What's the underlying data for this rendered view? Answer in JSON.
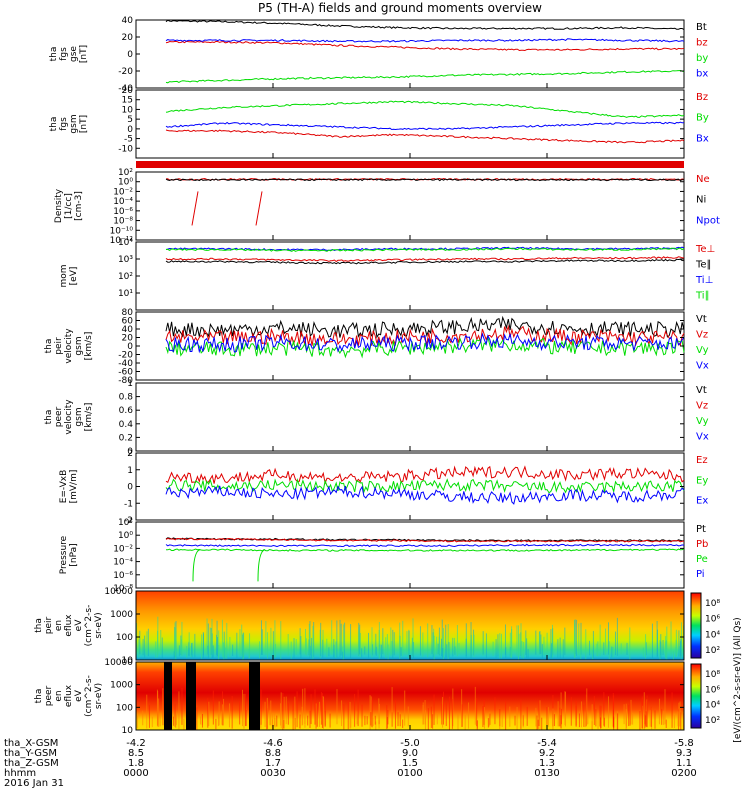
{
  "title": "P5 (TH-A) fields and ground moments overview",
  "colors": {
    "black": "#000000",
    "red": "#e00000",
    "green": "#00dd00",
    "blue": "#0000ff"
  },
  "chart_data": [
    {
      "type": "line",
      "name": "fgs-gse",
      "ylabel": [
        "tha",
        "fgs",
        "gse",
        "[nT]"
      ],
      "ylim": [
        -40,
        40
      ],
      "yticks": [
        -40,
        -20,
        0,
        20,
        40
      ],
      "series": [
        {
          "name": "Bt",
          "color": "#000000",
          "values": [
            39,
            38,
            36,
            33,
            31,
            30,
            30,
            30,
            31,
            29
          ]
        },
        {
          "name": "bz",
          "color": "#e00000",
          "values": [
            14,
            14,
            13,
            10,
            8,
            6,
            5,
            5,
            6,
            6
          ]
        },
        {
          "name": "by",
          "color": "#00dd00",
          "values": [
            -33,
            -31,
            -29,
            -28,
            -27,
            -25,
            -24,
            -23,
            -21,
            -20
          ]
        },
        {
          "name": "bx",
          "color": "#0000ff",
          "values": [
            16,
            16,
            16,
            15,
            15,
            16,
            16,
            17,
            16,
            15
          ]
        }
      ]
    },
    {
      "type": "line",
      "name": "fgs-gsm",
      "ylabel": [
        "tha",
        "fgs",
        "gsm",
        "[nT]"
      ],
      "ylim": [
        -15,
        20
      ],
      "yticks": [
        -10,
        -5,
        0,
        5,
        10,
        15,
        20
      ],
      "series": [
        {
          "name": "Bz",
          "color": "#e00000",
          "values": [
            -1,
            -1,
            -2,
            -4,
            -3,
            -4,
            -5,
            -6,
            -7,
            -6
          ]
        },
        {
          "name": "By",
          "color": "#00dd00",
          "values": [
            9,
            11,
            12,
            13,
            14,
            13,
            12,
            9,
            6,
            7
          ]
        },
        {
          "name": "Bx",
          "color": "#0000ff",
          "values": [
            1,
            3,
            2,
            1,
            0,
            0,
            1,
            2,
            3,
            3
          ]
        }
      ]
    },
    {
      "type": "line",
      "name": "density",
      "ylabel": [
        "Density",
        "[1/cc]",
        "[cm-3]"
      ],
      "ylim": [
        -12,
        2
      ],
      "log": true,
      "yticks": [
        -12,
        -10,
        -8,
        -6,
        -4,
        -2,
        0,
        2
      ],
      "series": [
        {
          "name": "Ne",
          "color": "#e00000",
          "values": [
            0.5,
            0.5,
            0.5,
            0.5,
            0.5,
            0.5,
            0.5,
            0.5,
            0.5,
            0.5
          ]
        },
        {
          "name": "Ni",
          "color": "#000000",
          "values": [
            0.4,
            0.4,
            0.4,
            0.4,
            0.4,
            0.4,
            0.4,
            0.4,
            0.4,
            0.4
          ]
        },
        {
          "name": "Npot",
          "color": "#0000ff",
          "values": []
        }
      ]
    },
    {
      "type": "line",
      "name": "temperature",
      "ylabel": [
        "mom",
        "[eV]"
      ],
      "ylim": [
        0,
        4
      ],
      "log": true,
      "yticks": [
        1,
        2,
        3,
        4
      ],
      "series": [
        {
          "name": "Te⊥",
          "color": "#e00000",
          "values": [
            3.0,
            3.0,
            2.95,
            2.9,
            2.95,
            3.0,
            3.0,
            3.05,
            3.05,
            3.1
          ]
        },
        {
          "name": "Te∥",
          "color": "#000000",
          "values": [
            2.85,
            2.85,
            2.8,
            2.75,
            2.8,
            2.85,
            2.85,
            2.9,
            2.9,
            2.95
          ]
        },
        {
          "name": "Ti⊥",
          "color": "#0000ff",
          "values": [
            3.6,
            3.6,
            3.55,
            3.55,
            3.6,
            3.6,
            3.65,
            3.6,
            3.6,
            3.65
          ]
        },
        {
          "name": "Ti∥",
          "color": "#00dd00",
          "values": [
            3.55,
            3.55,
            3.5,
            3.5,
            3.55,
            3.55,
            3.6,
            3.55,
            3.55,
            3.6
          ]
        }
      ]
    },
    {
      "type": "line",
      "name": "peir-velocity",
      "ylabel": [
        "tha",
        "peir",
        "velocity",
        "gsm",
        "[km/s]"
      ],
      "ylim": [
        -80,
        80
      ],
      "yticks": [
        -80,
        -60,
        -40,
        -20,
        0,
        20,
        40,
        60,
        80
      ],
      "series": [
        {
          "name": "Vt",
          "color": "#000000",
          "values": [
            40,
            38,
            42,
            35,
            40,
            45,
            50,
            42,
            40,
            38
          ]
        },
        {
          "name": "Vz",
          "color": "#e00000",
          "values": [
            20,
            18,
            22,
            15,
            20,
            25,
            30,
            22,
            20,
            18
          ]
        },
        {
          "name": "Vy",
          "color": "#00dd00",
          "values": [
            -5,
            -8,
            -5,
            -10,
            -5,
            0,
            5,
            -5,
            -5,
            -5
          ]
        },
        {
          "name": "Vx",
          "color": "#0000ff",
          "values": [
            5,
            3,
            8,
            2,
            6,
            10,
            12,
            8,
            6,
            5
          ]
        }
      ]
    },
    {
      "type": "line",
      "name": "peer-velocity",
      "ylabel": [
        "tha",
        "peer",
        "velocity",
        "gsm",
        "[km/s]"
      ],
      "ylim": [
        0,
        1
      ],
      "yticks": [
        0,
        0.2,
        0.4,
        0.6,
        0.8,
        1.0
      ],
      "series": [
        {
          "name": "Vt",
          "color": "#000000",
          "values": []
        },
        {
          "name": "Vz",
          "color": "#e00000",
          "values": []
        },
        {
          "name": "Vy",
          "color": "#00dd00",
          "values": []
        },
        {
          "name": "Vx",
          "color": "#0000ff",
          "values": []
        }
      ]
    },
    {
      "type": "line",
      "name": "efield",
      "ylabel": [
        "E=-VxB",
        "[mV/m]"
      ],
      "ylim": [
        -2,
        2
      ],
      "yticks": [
        -2,
        -1,
        0,
        1,
        2
      ],
      "series": [
        {
          "name": "Ez",
          "color": "#e00000",
          "values": [
            0.6,
            0.5,
            0.7,
            0.5,
            0.6,
            0.8,
            0.9,
            0.7,
            0.8,
            0.6
          ]
        },
        {
          "name": "Ey",
          "color": "#00dd00",
          "values": [
            0.1,
            0.0,
            0.1,
            0.0,
            0.0,
            0.1,
            0.0,
            -0.1,
            0.0,
            0.0
          ]
        },
        {
          "name": "Ex",
          "color": "#0000ff",
          "values": [
            -0.4,
            -0.3,
            -0.5,
            -0.3,
            -0.4,
            -0.6,
            -0.7,
            -0.5,
            -0.6,
            -0.4
          ]
        }
      ]
    },
    {
      "type": "line",
      "name": "pressure",
      "ylabel": [
        "Pressure",
        "[nPa]"
      ],
      "ylim": [
        -8,
        2
      ],
      "log": true,
      "yticks": [
        -8,
        -6,
        -4,
        -2,
        0,
        2
      ],
      "series": [
        {
          "name": "Pt",
          "color": "#000000",
          "values": [
            -0.5,
            -0.6,
            -0.6,
            -0.7,
            -0.7,
            -0.8,
            -0.8,
            -0.8,
            -0.8,
            -0.8
          ]
        },
        {
          "name": "Pb",
          "color": "#e00000",
          "values": [
            -0.6,
            -0.6,
            -0.7,
            -0.8,
            -0.8,
            -0.9,
            -0.9,
            -0.9,
            -0.9,
            -0.9
          ]
        },
        {
          "name": "Pe",
          "color": "#00dd00",
          "values": [
            -2.2,
            -2.2,
            -2.3,
            -2.3,
            -2.3,
            -2.3,
            -2.3,
            -2.3,
            -2.2,
            -2.2
          ]
        },
        {
          "name": "Pi",
          "color": "#0000ff",
          "values": [
            -1.5,
            -1.6,
            -1.6,
            -1.6,
            -1.6,
            -1.6,
            -1.5,
            -1.5,
            -1.5,
            -1.5
          ]
        }
      ]
    },
    {
      "type": "heatmap",
      "name": "peir-spectrogram",
      "ylabel": [
        "tha",
        "peir",
        "en",
        "eflux",
        "eV",
        "(cm^2-s-",
        "sr-eV)"
      ],
      "ylim": [
        1,
        4
      ],
      "log": true,
      "yticks": [
        10,
        100,
        1000,
        10000
      ],
      "colorbar_ticks": [
        "10⁸",
        "10⁶",
        "10⁴",
        "10²"
      ],
      "colorbar_label": "[eV/(cm^2-s-sr-eV)] (All Qs)"
    },
    {
      "type": "heatmap",
      "name": "peer-spectrogram",
      "ylabel": [
        "tha",
        "peer",
        "en",
        "eflux",
        "eV",
        "(cm^2-s-",
        "sr-eV)"
      ],
      "ylim": [
        1,
        4
      ],
      "log": true,
      "yticks": [
        10,
        100,
        1000,
        10000
      ],
      "colorbar_ticks": [
        "10⁸",
        "10⁶",
        "10⁴",
        "10²"
      ],
      "colorbar_label": "[eV/(cm^2-s-sr-eV)] (All Qs)"
    }
  ],
  "x_axis": {
    "row_labels": [
      "tha_X-GSM",
      "tha_Y-GSM",
      "tha_Z-GSM",
      "hhmm",
      "2016 Jan 31"
    ],
    "columns": [
      [
        "-4.2",
        "8.5",
        "1.8",
        "0000"
      ],
      [
        "-4.6",
        "8.8",
        "1.7",
        "0030"
      ],
      [
        "-5.0",
        "9.0",
        "1.5",
        "0100"
      ],
      [
        "-5.4",
        "9.2",
        "1.3",
        "0130"
      ],
      [
        "-5.8",
        "9.3",
        "1.1",
        "0200"
      ]
    ]
  }
}
